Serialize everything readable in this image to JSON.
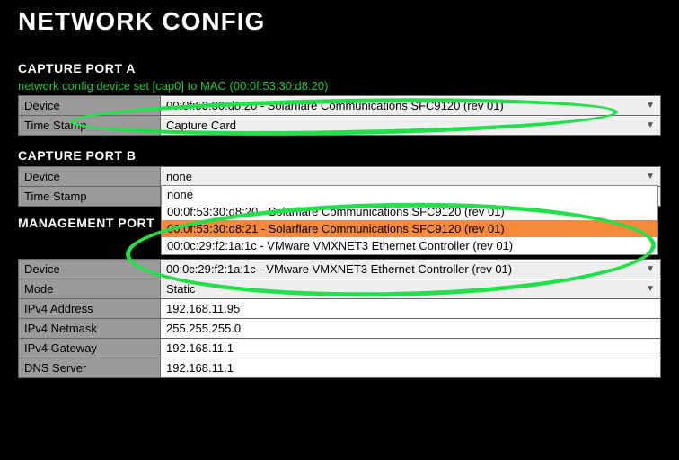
{
  "page_title": "NETWORK CONFIG",
  "annotation_color": "#22e04a",
  "sections": {
    "portA": {
      "heading": "CAPTURE PORT A",
      "status": "network config device set [cap0] to MAC (00:0f:53:30:d8:20)",
      "device_label": "Device",
      "device_value": "00:0f:53:30:d8:20 - Solarflare Communications SFC9120 (rev 01)",
      "tstamp_label": "Time Stamp",
      "tstamp_value": "Capture Card"
    },
    "portB": {
      "heading": "CAPTURE PORT B",
      "device_label": "Device",
      "device_value": "none",
      "tstamp_label": "Time Stamp",
      "tstamp_value": "",
      "dropdown": {
        "options": [
          {
            "text": "none",
            "highlight": false
          },
          {
            "text": "00:0f:53:30:d8:20 - Solarflare Communications SFC9120 (rev 01)",
            "highlight": false
          },
          {
            "text": "00:0f:53:30:d8:21 - Solarflare Communications SFC9120 (rev 01)",
            "highlight": true
          },
          {
            "text": "00:0c:29:f2:1a:1c - VMware VMXNET3 Ethernet Controller (rev 01)",
            "highlight": false
          }
        ]
      }
    },
    "mgmt": {
      "heading": "MANAGEMENT PORT",
      "device_label": "Device",
      "device_value": "00:0c:29:f2:1a:1c - VMware VMXNET3 Ethernet Controller (rev 01)",
      "mode_label": "Mode",
      "mode_value": "Static",
      "ip_label": "IPv4 Address",
      "ip_value": "192.168.11.95",
      "mask_label": "IPv4 Netmask",
      "mask_value": "255.255.255.0",
      "gw_label": "IPv4 Gateway",
      "gw_value": "192.168.11.1",
      "dns_label": "DNS Server",
      "dns_value": "192.168.11.1"
    }
  }
}
